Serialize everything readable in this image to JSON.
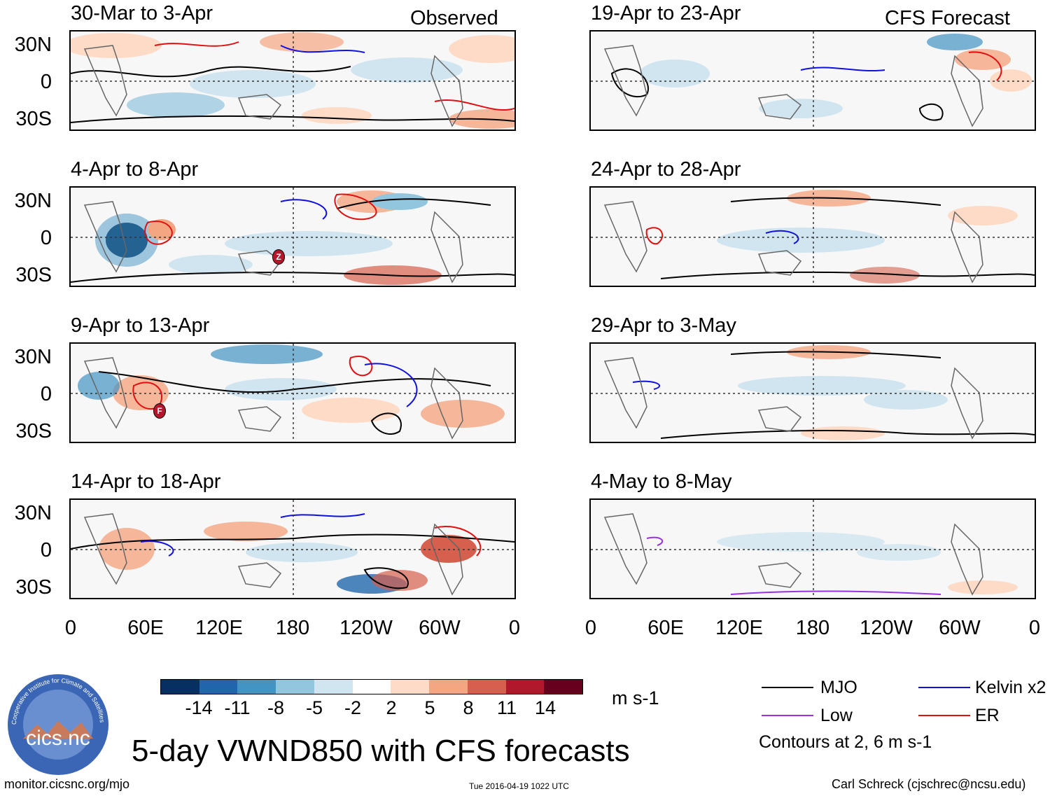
{
  "columns": {
    "left_label": "Observed",
    "right_label": "CFS Forecast"
  },
  "panels": {
    "left": [
      {
        "title": "30-Mar to 3-Apr"
      },
      {
        "title": "4-Apr to 8-Apr"
      },
      {
        "title": "9-Apr to 13-Apr"
      },
      {
        "title": "14-Apr to 18-Apr"
      }
    ],
    "right": [
      {
        "title": "19-Apr to 23-Apr"
      },
      {
        "title": "24-Apr to 28-Apr"
      },
      {
        "title": "29-Apr to 3-May"
      },
      {
        "title": "4-May to 8-May"
      }
    ]
  },
  "storm_markers": [
    "Z",
    "F"
  ],
  "axes": {
    "lat_labels": [
      "30N",
      "0",
      "30S"
    ],
    "lon_labels": [
      "0",
      "60E",
      "120E",
      "180",
      "120W",
      "60W",
      "0"
    ]
  },
  "colorbar": {
    "colors": [
      "#053061",
      "#2166ac",
      "#4393c3",
      "#92c5de",
      "#d1e5f0",
      "#ffffff",
      "#fddbc7",
      "#f4a582",
      "#d6604d",
      "#b2182b",
      "#67001f"
    ],
    "labels": [
      "-14",
      "-11",
      "-8",
      "-5",
      "-2",
      "2",
      "5",
      "8",
      "11",
      "14"
    ],
    "units": "m s-1"
  },
  "legend": {
    "items": [
      {
        "label": "MJO",
        "color": "#000000"
      },
      {
        "label": "Kelvin x2",
        "color": "#1010e0"
      },
      {
        "label": "Low",
        "color": "#9932e0"
      },
      {
        "label": "ER",
        "color": "#e01010"
      }
    ],
    "contours_note": "Contours at 2, 6 m s-1"
  },
  "logo": {
    "text": "cics.nc",
    "ring_text": "Cooperative Institute for Climate and Satellites"
  },
  "title": "5-day VWND850 with CFS forecasts",
  "footer": {
    "url": "monitor.cicsnc.org/mjo",
    "timestamp": "Tue 2016-04-19 1022 UTC",
    "credit": "Carl Schreck (cjschrec@ncsu.edu)"
  }
}
